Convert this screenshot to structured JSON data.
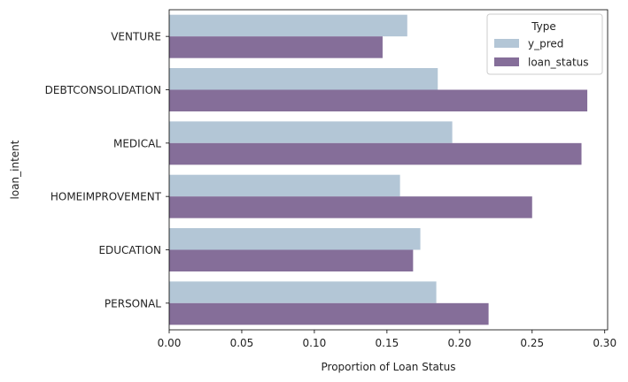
{
  "chart_data": {
    "type": "bar",
    "orientation": "horizontal",
    "categories": [
      "VENTURE",
      "DEBTCONSOLIDATION",
      "MEDICAL",
      "HOMEIMPROVEMENT",
      "EDUCATION",
      "PERSONAL"
    ],
    "series": [
      {
        "name": "y_pred",
        "values": [
          0.164,
          0.185,
          0.195,
          0.159,
          0.173,
          0.184
        ],
        "color": "#b3c6d6"
      },
      {
        "name": "loan_status",
        "values": [
          0.147,
          0.288,
          0.284,
          0.25,
          0.168,
          0.22
        ],
        "color": "#856e99"
      }
    ],
    "xlabel": "Proportion of Loan Status",
    "ylabel": "loan_intent",
    "xlim": [
      0,
      0.302
    ],
    "xticks": [
      "0.00",
      "0.05",
      "0.10",
      "0.15",
      "0.20",
      "0.25",
      "0.30"
    ],
    "xtick_values": [
      0,
      0.05,
      0.1,
      0.15,
      0.2,
      0.25,
      0.3
    ],
    "legend": {
      "title": "Type",
      "position": "top-right"
    },
    "grid": false
  }
}
